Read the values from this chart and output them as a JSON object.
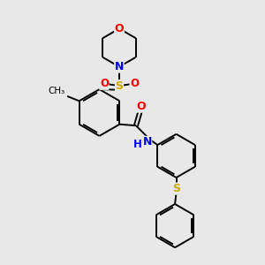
{
  "background_color": "#e8e8e8",
  "bond_color": "#000000",
  "atom_colors": {
    "O": "#ff0000",
    "N": "#0000ff",
    "S": "#ccaa00",
    "H": "#0000ff",
    "C": "#000000"
  },
  "figsize": [
    3.0,
    3.0
  ],
  "dpi": 100
}
